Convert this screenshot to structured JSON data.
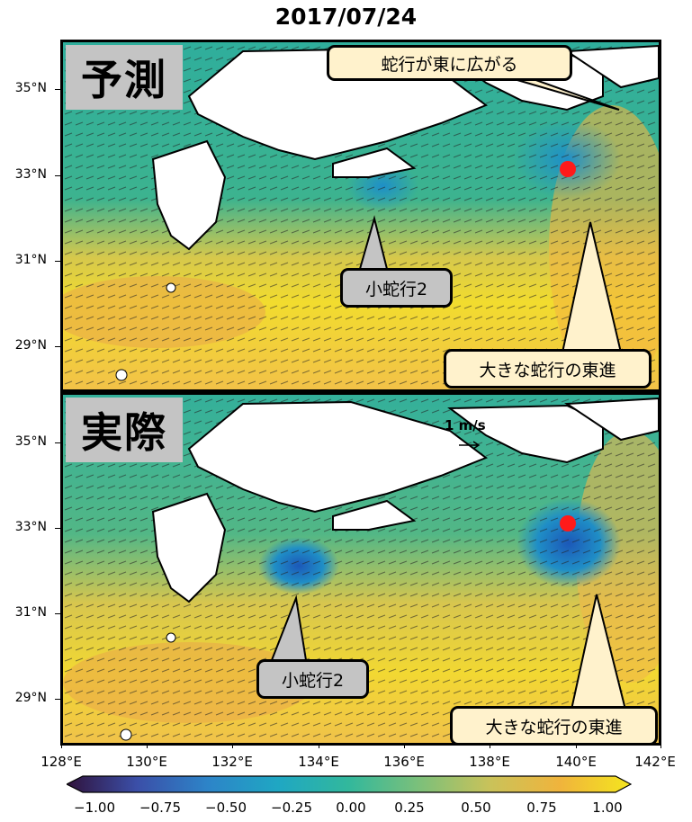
{
  "title": "2017/07/24",
  "panels": [
    {
      "label": "予測",
      "callouts": [
        "蛇行が東に広がる",
        "小蛇行2",
        "大きな蛇行の東進"
      ]
    },
    {
      "label": "実際",
      "scale_label": "1 m/s",
      "callouts": [
        "小蛇行2",
        "大きな蛇行の東進"
      ]
    }
  ],
  "y_ticks": [
    "35°N",
    "33°N",
    "31°N",
    "29°N"
  ],
  "x_ticks": [
    "128°E",
    "130°E",
    "132°E",
    "134°E",
    "136°E",
    "138°E",
    "140°E",
    "142°E"
  ],
  "colorbar": {
    "ticks": [
      "−1.00",
      "−0.75",
      "−0.50",
      "−0.25",
      "0.00",
      "0.25",
      "0.50",
      "0.75",
      "1.00"
    ],
    "colors": [
      "#30123b",
      "#3b4fa8",
      "#2d84c8",
      "#1fa7c3",
      "#32b89c",
      "#7cc07a",
      "#c9c25a",
      "#f0b43c",
      "#f4e61e"
    ]
  },
  "markers": {
    "color": "#ff1a1a"
  }
}
